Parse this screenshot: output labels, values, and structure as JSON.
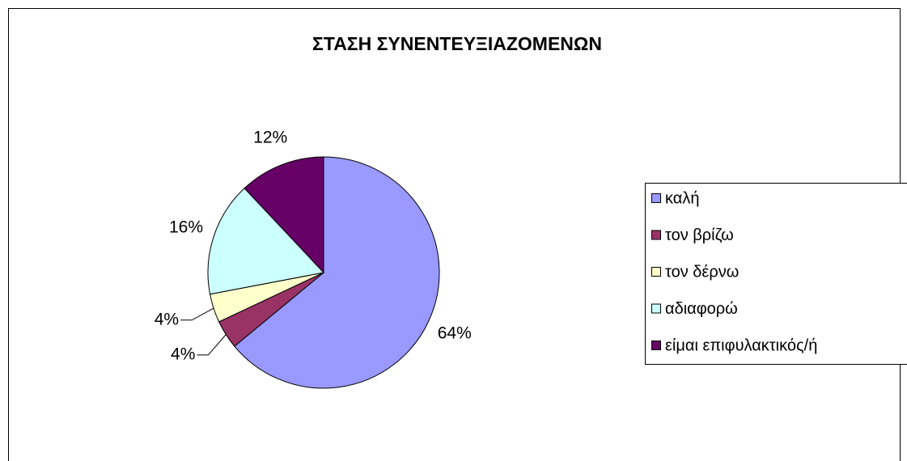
{
  "chart_data": {
    "type": "pie",
    "title": "ΣΤΑΣΗ ΣΥΝΕΝΤΕΥΞΙΑΖΟΜΕΝΩΝ",
    "categories": [
      "καλή",
      "τον βρίζω",
      "τον δέρνω",
      "αδιαφορώ",
      "είμαι επιφυλακτικός/ή"
    ],
    "values": [
      64,
      4,
      4,
      16,
      12
    ],
    "value_labels": [
      "64%",
      "4%",
      "4%",
      "16%",
      "12%"
    ],
    "colors": [
      "#9999ff",
      "#993366",
      "#ffffcc",
      "#ccffff",
      "#660066"
    ],
    "legend": "right"
  }
}
